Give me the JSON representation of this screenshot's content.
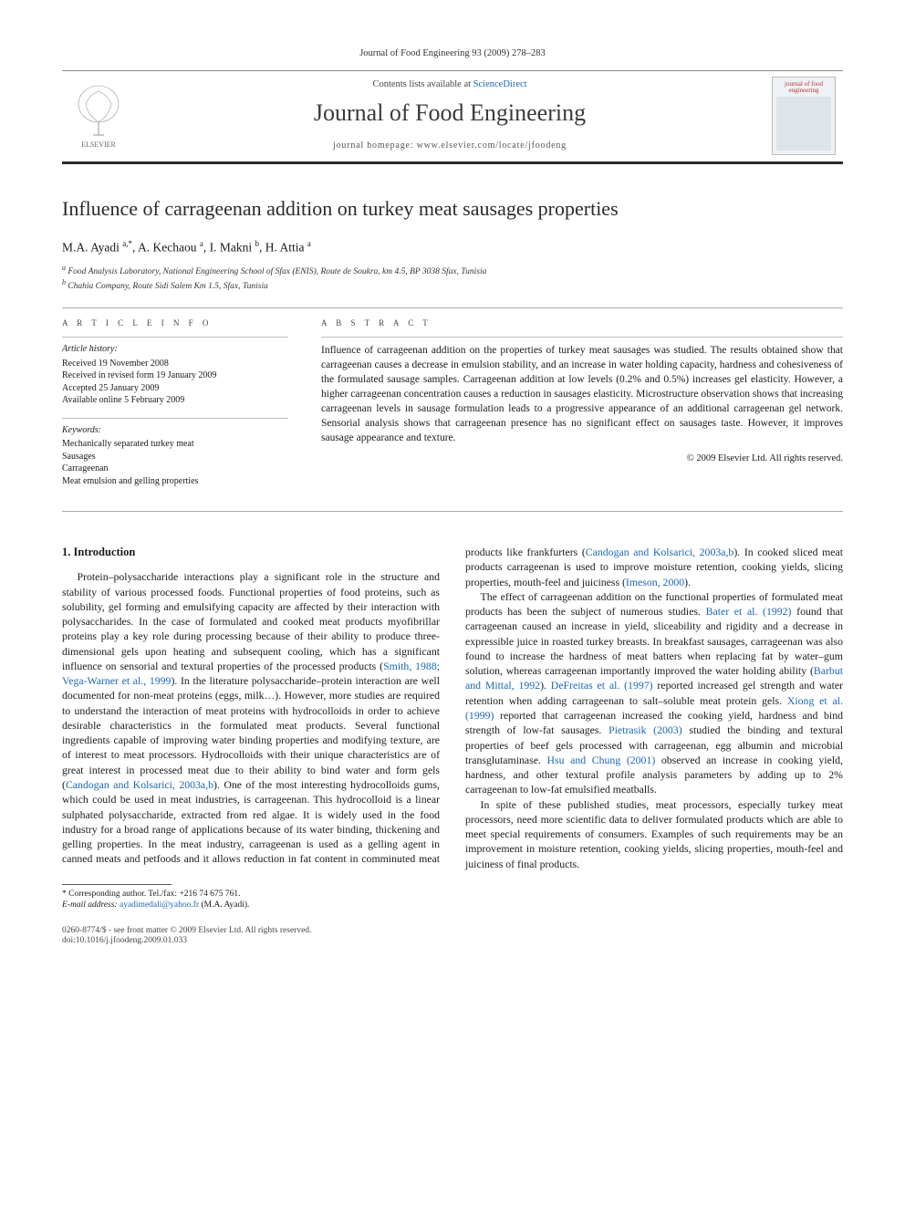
{
  "journal_ref": "Journal of Food Engineering 93 (2009) 278–283",
  "header": {
    "contents_prefix": "Contents lists available at ",
    "contents_link": "ScienceDirect",
    "journal_name": "Journal of Food Engineering",
    "homepage_prefix": "journal homepage: ",
    "homepage_url": "www.elsevier.com/locate/jfoodeng",
    "publisher": "ELSEVIER",
    "cover_label": "journal of food engineering"
  },
  "title": "Influence of carrageenan addition on turkey meat sausages properties",
  "authors_html": "M.A. Ayadi <sup>a,*</sup>, A. Kechaou <sup>a</sup>, I. Makni <sup>b</sup>, H. Attia <sup>a</sup>",
  "affiliations": [
    "a Food Analysis Laboratory, National Engineering School of Sfax (ENIS), Route de Soukra, km 4.5, BP 3038 Sfax, Tunisia",
    "b Chahia Company, Route Sidi Salem Km 1.5, Sfax, Tunisia"
  ],
  "info": {
    "heading_info": "A R T I C L E   I N F O",
    "heading_abs": "A B S T R A C T",
    "history_label": "Article history:",
    "history": [
      "Received 19 November 2008",
      "Received in revised form 19 January 2009",
      "Accepted 25 January 2009",
      "Available online 5 February 2009"
    ],
    "keywords_label": "Keywords:",
    "keywords": [
      "Mechanically separated turkey meat",
      "Sausages",
      "Carrageenan",
      "Meat emulsion and gelling properties"
    ]
  },
  "abstract": "Influence of carrageenan addition on the properties of turkey meat sausages was studied. The results obtained show that carrageenan causes a decrease in emulsion stability, and an increase in water holding capacity, hardness and cohesiveness of the formulated sausage samples. Carrageenan addition at low levels (0.2% and 0.5%) increases gel elasticity. However, a higher carrageenan concentration causes a reduction in sausages elasticity. Microstructure observation shows that increasing carrageenan levels in sausage formulation leads to a progressive appearance of an additional carrageenan gel network. Sensorial analysis shows that carrageenan presence has no significant effect on sausages taste. However, it improves sausage appearance and texture.",
  "copyright": "© 2009 Elsevier Ltd. All rights reserved.",
  "section1_heading": "1. Introduction",
  "para1": "Protein–polysaccharide interactions play a significant role in the structure and stability of various processed foods. Functional properties of food proteins, such as solubility, gel forming and emulsifying capacity are affected by their interaction with polysaccharides. In the case of formulated and cooked meat products myofibrillar proteins play a key role during processing because of their ability to produce three-dimensional gels upon heating and subsequent cooling, which has a significant influence on sensorial and textural properties of the processed products (",
  "cite1": "Smith, 1988; Vega-Warner et al., 1999",
  "para1b": "). In the literature polysaccharide–protein interaction are well documented for non-meat proteins (eggs, milk…). However, more studies are required to understand the interaction of meat proteins with hydrocolloids in order to achieve desirable characteristics in the formulated meat products. Several functional ingredients capable of improving water binding properties and modifying texture, are of interest to meat processors. Hydrocolloids with their unique characteristics are of great interest in processed meat due to their ability to bind water and form gels (",
  "cite2": "Candogan and Kolsarici,  2003a,b",
  "para1c": "). One of the most interesting hydrocolloids gums, which could be used in meat industries, is carrageenan. This hydrocolloid is a linear sulphated polysaccharide, extracted from red algae. It is widely used in the food industry for a broad range of applications because of its water binding, thickening and gelling properties. In the meat industry, carrageenan is used as a gelling agent in canned meats and petfoods and it allows reduction in fat content in comminuted meat products like frankfurters (",
  "cite3": "Candogan and Kolsarici, 2003a,b",
  "para1d": "). In cooked sliced meat products carrageenan is used to improve moisture retention, cooking yields, slicing properties, mouth-feel and juiciness (",
  "cite4": "Imeson, 2000",
  "para1e": ").",
  "para2a": "The effect of carrageenan addition on the functional properties of formulated meat products has been the subject of numerous studies. ",
  "cite5": "Bater et al. (1992)",
  "para2b": " found that carrageenan caused an increase in yield, sliceability and rigidity and a decrease in expressible juice in roasted turkey breasts. In breakfast sausages, carrageenan was also found to increase the hardness of meat batters when replacing fat by water–gum solution, whereas carrageenan importantly improved the water holding ability (",
  "cite6": "Barbut and Mittal, 1992",
  "para2c": "). ",
  "cite7": "DeFreitas et al. (1997)",
  "para2d": " reported increased gel strength and water retention when adding carrageenan to salt–soluble meat protein gels. ",
  "cite8": "Xiong et al. (1999)",
  "para2e": " reported that carrageenan increased the cooking yield, hardness and bind strength of low-fat sausages. ",
  "cite9": "Pietrasik (2003)",
  "para2f": " studied the binding and textural properties of beef gels processed with carrageenan, egg albumin and microbial transglutaminase. ",
  "cite10": "Hsu and Chung (2001)",
  "para2g": " observed an increase in cooking yield, hardness, and other textural profile analysis parameters by adding up to 2% carrageenan to low-fat emulsified meatballs.",
  "para3": "In spite of these published studies, meat processors, especially turkey meat processors, need more scientific data to deliver formulated products which are able to meet special requirements of consumers. Examples of such requirements may be an improvement in moisture retention, cooking yields, slicing properties, mouth-feel and juiciness of final products.",
  "footnote": {
    "corr": "* Corresponding author. Tel./fax: +216 74 675 761.",
    "email_label": "E-mail address:",
    "email": "ayadimedali@yahoo.fr",
    "email_suffix": " (M.A. Ayadi)."
  },
  "footer": {
    "line1": "0260-8774/$ - see front matter © 2009 Elsevier Ltd. All rights reserved.",
    "line2": "doi:10.1016/j.jfoodeng.2009.01.033"
  },
  "colors": {
    "link": "#1a66b3",
    "rule_dark": "#2a2a2a",
    "text": "#1a1a1a"
  }
}
